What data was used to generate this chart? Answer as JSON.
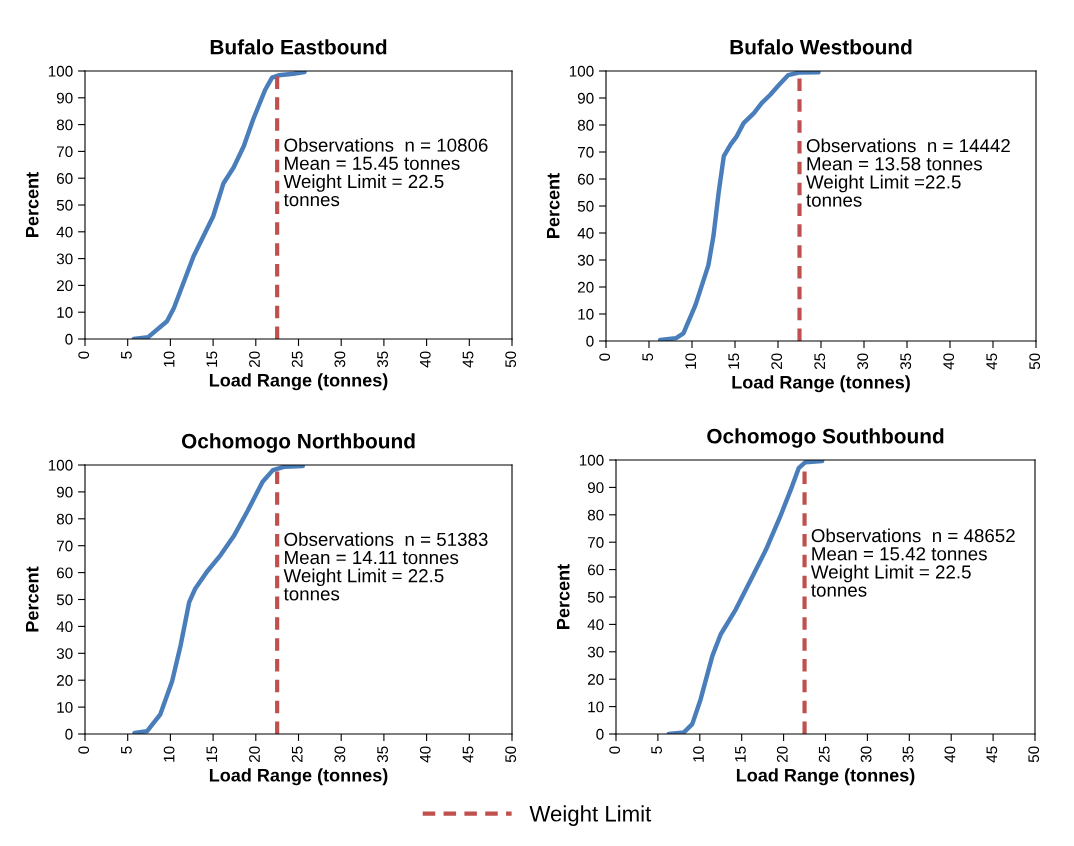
{
  "chart_data": [
    {
      "type": "line",
      "title": "Bufalo Eastbound",
      "xlabel": "Load Range (tonnes)",
      "ylabel": "Percent",
      "xlim": [
        0,
        50
      ],
      "xticks": [
        0,
        5,
        10,
        15,
        20,
        25,
        30,
        35,
        40,
        45,
        50
      ],
      "ylim": [
        0,
        100
      ],
      "yticks": [
        0,
        10,
        20,
        30,
        40,
        50,
        60,
        70,
        80,
        90,
        100
      ],
      "grid": false,
      "marker": "none",
      "line_style": "solid",
      "legend": "bottom",
      "series": [
        {
          "color": "#4a7ebb",
          "x": [
            5.7,
            7.4,
            9.6,
            10.4,
            12.7,
            15.0,
            16.2,
            17.4,
            18.6,
            19.7,
            21.1,
            21.9,
            22.7,
            24.4,
            25.7
          ],
          "values": [
            0,
            0.7,
            6.6,
            11.5,
            30.8,
            45.7,
            58,
            64,
            72,
            82,
            93,
            97.5,
            98.4,
            99,
            99.6
          ]
        }
      ],
      "ref_lines": [
        {
          "axis": "x",
          "value": 22.5,
          "label": "Weight Limit",
          "color": "#c0504d",
          "line_style": "dashed"
        }
      ],
      "annotations": [
        "Observations  n = 10806\nMean = 15.45 tonnes\nWeight Limit = 22.5\ntonnes"
      ]
    },
    {
      "type": "line",
      "title": "Bufalo Westbound",
      "xlabel": "Load Range (tonnes)",
      "ylabel": "Percent",
      "xlim": [
        0,
        50
      ],
      "xticks": [
        0,
        5,
        10,
        15,
        20,
        25,
        30,
        35,
        40,
        45,
        50
      ],
      "ylim": [
        0,
        100
      ],
      "yticks": [
        0,
        10,
        20,
        30,
        40,
        50,
        60,
        70,
        80,
        90,
        100
      ],
      "grid": false,
      "marker": "none",
      "line_style": "solid",
      "series": [
        {
          "color": "#4a7ebb",
          "x": [
            6.3,
            8.1,
            9.0,
            10.4,
            11.9,
            12.5,
            13.1,
            13.7,
            14.5,
            15.2,
            16.0,
            17.2,
            18.1,
            19.1,
            20.1,
            21.2,
            22.4,
            24.7
          ],
          "values": [
            0.4,
            1,
            2.8,
            13.3,
            28,
            39,
            55,
            68.5,
            72.8,
            75.8,
            80.7,
            84.4,
            88.1,
            91.2,
            94.8,
            98.5,
            99.4,
            99.5
          ]
        }
      ],
      "ref_lines": [
        {
          "axis": "x",
          "value": 22.5,
          "color": "#c0504d",
          "line_style": "dashed"
        }
      ],
      "annotations": [
        "Observations  n = 14442\nMean = 13.58 tonnes\nWeight Limit =22.5\ntonnes"
      ]
    },
    {
      "type": "line",
      "title": "Ochomogo Northbound",
      "xlabel": "Load Range (tonnes)",
      "ylabel": "Percent",
      "xlim": [
        0,
        50
      ],
      "xticks": [
        0,
        5,
        10,
        15,
        20,
        25,
        30,
        35,
        40,
        45,
        50
      ],
      "ylim": [
        0,
        100
      ],
      "yticks": [
        0,
        10,
        20,
        30,
        40,
        50,
        60,
        70,
        80,
        90,
        100
      ],
      "grid": false,
      "marker": "none",
      "line_style": "solid",
      "series": [
        {
          "color": "#4a7ebb",
          "x": [
            5.8,
            7.25,
            8.8,
            10.2,
            11.2,
            12.2,
            12.9,
            14.3,
            15.9,
            17.5,
            19.0,
            20.8,
            22.0,
            23.3,
            25.5
          ],
          "values": [
            0.4,
            1,
            7.2,
            19.6,
            33,
            49,
            54,
            60.4,
            66.6,
            74,
            82.7,
            93.8,
            98.1,
            99.3,
            99.6
          ]
        }
      ],
      "ref_lines": [
        {
          "axis": "x",
          "value": 22.5,
          "color": "#c0504d",
          "line_style": "dashed"
        }
      ],
      "annotations": [
        "Observations  n = 51383\nMean = 14.11 tonnes\nWeight Limit = 22.5\ntonnes"
      ]
    },
    {
      "type": "line",
      "title": "Ochomogo Southbound",
      "xlabel": "Load Range (tonnes)",
      "ylabel": "Percent",
      "xlim": [
        0,
        50
      ],
      "xticks": [
        0,
        5,
        10,
        15,
        20,
        25,
        30,
        35,
        40,
        45,
        50
      ],
      "ylim": [
        0,
        100
      ],
      "yticks": [
        0,
        10,
        20,
        30,
        40,
        50,
        60,
        70,
        80,
        90,
        100
      ],
      "grid": false,
      "marker": "none",
      "line_style": "solid",
      "series": [
        {
          "color": "#4a7ebb",
          "x": [
            6.3,
            8.1,
            9.1,
            10.1,
            11.5,
            12.5,
            14.3,
            16.3,
            17.9,
            19.6,
            21.0,
            21.8,
            22.6,
            24.6
          ],
          "values": [
            0,
            0.6,
            3.6,
            12.7,
            28.5,
            36.4,
            45.5,
            57.6,
            67.3,
            79.4,
            90.3,
            97,
            99.2,
            99.6
          ]
        }
      ],
      "ref_lines": [
        {
          "axis": "x",
          "value": 22.5,
          "color": "#c0504d",
          "line_style": "dashed"
        }
      ],
      "annotations": [
        "Observations  n = 48652\nMean = 15.42 tonnes\nWeight Limit = 22.5\ntonnes"
      ]
    }
  ]
}
